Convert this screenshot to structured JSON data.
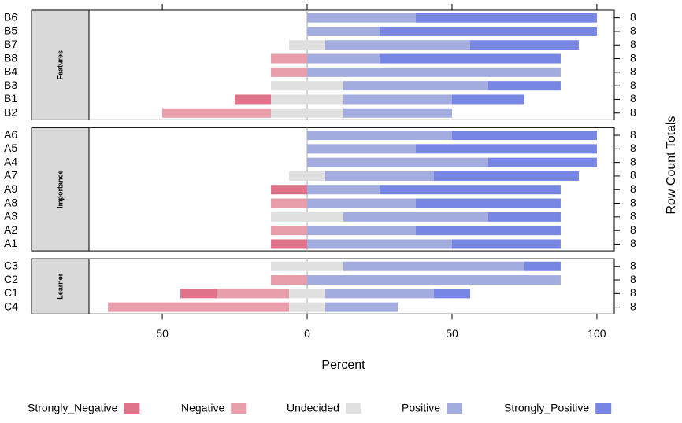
{
  "chart_data": {
    "type": "likert",
    "xlabel": "Percent",
    "y2label": "Row Count Totals",
    "xlim": [
      -75.3,
      106
    ],
    "xticks": [
      {
        "value": -50,
        "label": "50"
      },
      0,
      50,
      100
    ],
    "levels": [
      {
        "name": "Strongly_Negative",
        "color": "#e0728a"
      },
      {
        "name": "Negative",
        "color": "#e89dab"
      },
      {
        "name": "Undecided",
        "color": "#e0e0e0"
      },
      {
        "name": "Positive",
        "color": "#a3acdf"
      },
      {
        "name": "Strongly_Positive",
        "color": "#7785e3"
      }
    ],
    "panels": [
      {
        "strip": "Features",
        "categories": [
          "B6",
          "B5",
          "B7",
          "B8",
          "B4",
          "B3",
          "B1",
          "B2"
        ],
        "values": [
          [
            0,
            0,
            0,
            0,
            0,
            0,
            12.5,
            0
          ],
          [
            0,
            0,
            0,
            12.5,
            12.5,
            0,
            0,
            37.5
          ],
          [
            0,
            0,
            12.5,
            0,
            0,
            25,
            25,
            25
          ],
          [
            37.5,
            25,
            50,
            25,
            87.5,
            50,
            37.5,
            37.5
          ],
          [
            62.5,
            75,
            37.5,
            62.5,
            0,
            25,
            25,
            0
          ]
        ],
        "row_totals": [
          8,
          8,
          8,
          8,
          8,
          8,
          8,
          8
        ]
      },
      {
        "strip": "Importance",
        "categories": [
          "A6",
          "A5",
          "A4",
          "A7",
          "A9",
          "A8",
          "A3",
          "A2",
          "A1"
        ],
        "values": [
          [
            0,
            0,
            0,
            0,
            12.5,
            0,
            0,
            0,
            12.5
          ],
          [
            0,
            0,
            0,
            0,
            0,
            12.5,
            0,
            12.5,
            0
          ],
          [
            0,
            0,
            0,
            12.5,
            0,
            0,
            25,
            0,
            0
          ],
          [
            50,
            37.5,
            62.5,
            37.5,
            25,
            37.5,
            50,
            37.5,
            50
          ],
          [
            50,
            62.5,
            37.5,
            50,
            62.5,
            50,
            25,
            50,
            37.5
          ]
        ],
        "row_totals": [
          8,
          8,
          8,
          8,
          8,
          8,
          8,
          8,
          8
        ]
      },
      {
        "strip": "Learner",
        "categories": [
          "C3",
          "C2",
          "C1",
          "C4"
        ],
        "values": [
          [
            0,
            0,
            12.5,
            0
          ],
          [
            0,
            12.5,
            25,
            62.5
          ],
          [
            25,
            0,
            12.5,
            12.5
          ],
          [
            62.5,
            87.5,
            37.5,
            25
          ],
          [
            12.5,
            0,
            12.5,
            0
          ]
        ],
        "row_totals": [
          8,
          8,
          8,
          8
        ]
      }
    ]
  }
}
